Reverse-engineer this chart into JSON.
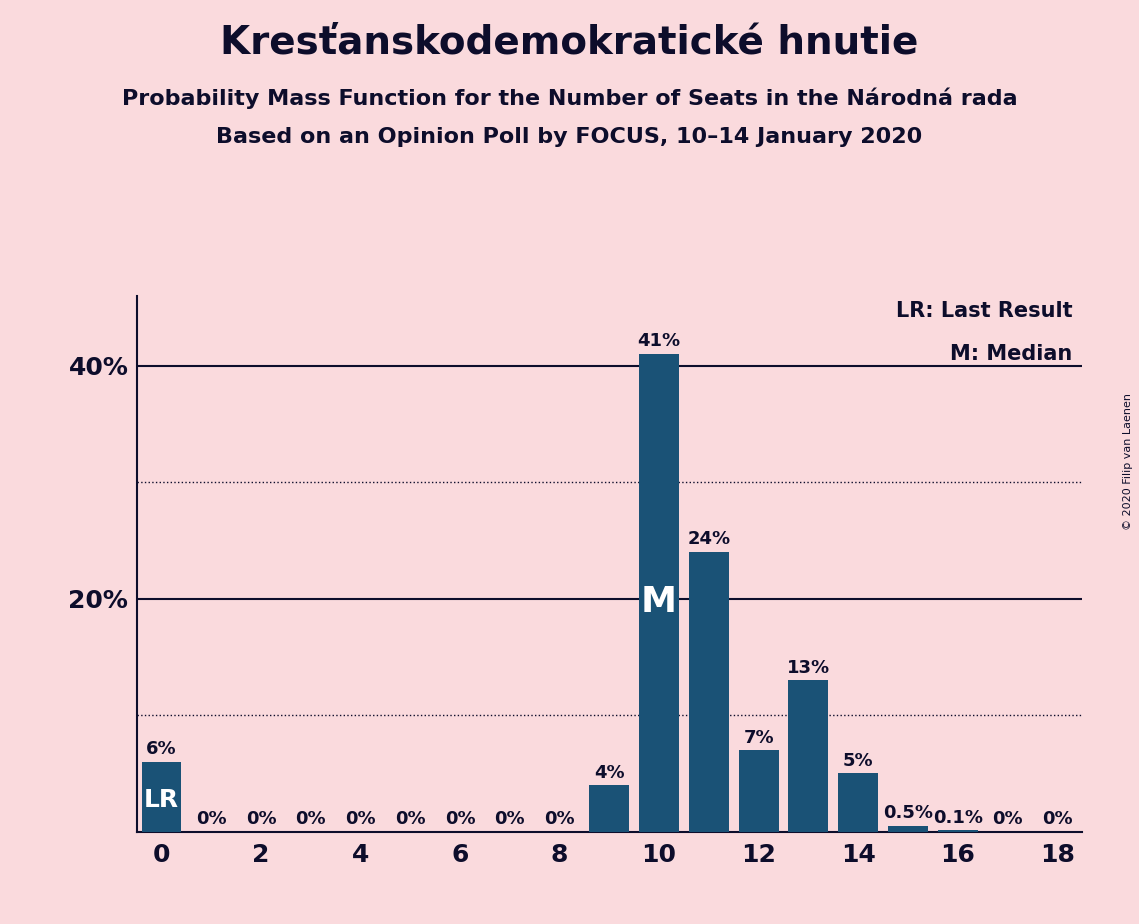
{
  "title": "Kresťanskodemokratické hnutie",
  "subtitle1": "Probability Mass Function for the Number of Seats in the Národná rada",
  "subtitle2": "Based on an Opinion Poll by FOCUS, 10–14 January 2020",
  "copyright": "© 2020 Filip van Laenen",
  "seats": [
    0,
    1,
    2,
    3,
    4,
    5,
    6,
    7,
    8,
    9,
    10,
    11,
    12,
    13,
    14,
    15,
    16,
    17,
    18
  ],
  "probabilities": [
    0.06,
    0.0,
    0.0,
    0.0,
    0.0,
    0.0,
    0.0,
    0.0,
    0.0,
    0.04,
    0.41,
    0.24,
    0.07,
    0.13,
    0.05,
    0.005,
    0.001,
    0.0,
    0.0
  ],
  "labels": [
    "6%",
    "0%",
    "0%",
    "0%",
    "0%",
    "0%",
    "0%",
    "0%",
    "0%",
    "4%",
    "41%",
    "24%",
    "7%",
    "13%",
    "5%",
    "0.5%",
    "0.1%",
    "0%",
    "0%"
  ],
  "bar_color": "#1a5276",
  "background_color": "#fadadd",
  "text_color": "#0d0d2b",
  "lr_seat": 0,
  "median_seat": 10,
  "lr_label": "LR",
  "median_label": "M",
  "legend_lr": "LR: Last Result",
  "legend_m": "M: Median",
  "ytick_positions": [
    0.2,
    0.4
  ],
  "ytick_labels": [
    "20%",
    "40%"
  ],
  "xlim": [
    -0.5,
    18.5
  ],
  "ylim": [
    0,
    0.46
  ],
  "dotted_lines": [
    0.1,
    0.3
  ],
  "solid_lines": [
    0.2,
    0.4
  ],
  "title_fontsize": 28,
  "subtitle_fontsize": 16,
  "label_fontsize": 13,
  "axis_fontsize": 18
}
